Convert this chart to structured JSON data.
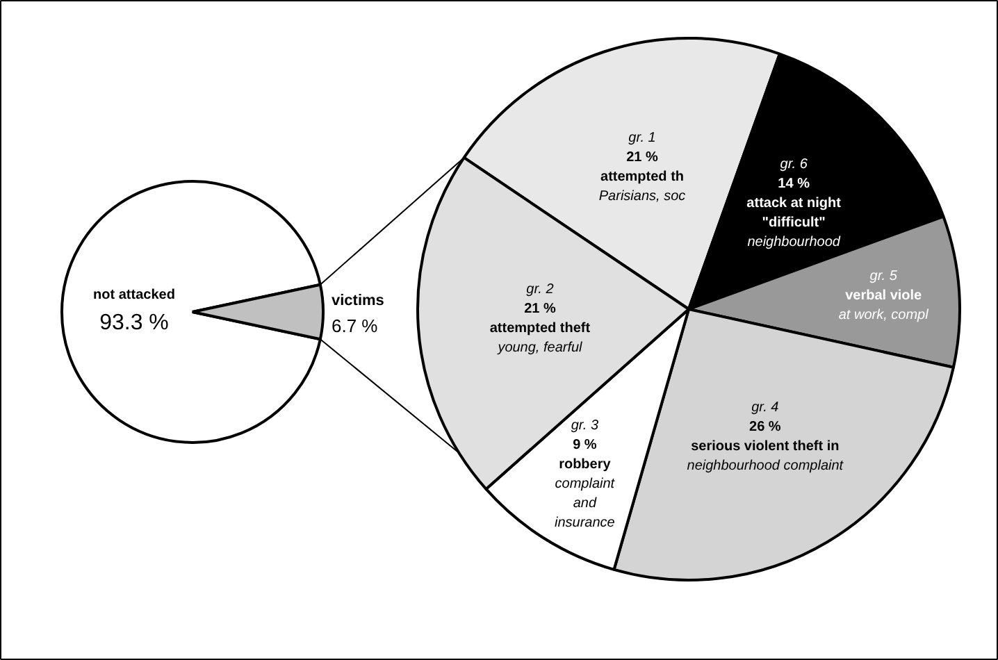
{
  "chart_data": [
    {
      "type": "pie",
      "categories": [
        "not attacked",
        "victims"
      ],
      "values": [
        93.3,
        6.7
      ],
      "value_labels": [
        "93.3 %",
        "6.7 %"
      ],
      "colors": [
        "#ffffff",
        "#c0c0c0"
      ]
    },
    {
      "type": "pie",
      "categories": [
        "gr. 1",
        "gr. 6",
        "gr. 5",
        "gr. 4",
        "gr. 3",
        "gr. 2"
      ],
      "values": [
        21,
        14,
        9,
        26,
        9,
        21
      ],
      "value_labels": [
        "21 %",
        "14 %",
        null,
        "26 %",
        "9 %",
        "21 %"
      ],
      "colors": [
        "#e8e8e8",
        "#000000",
        "#999999",
        "#d4d4d4",
        "#ffffff",
        "#e0e0e0"
      ],
      "annotations": [
        {
          "text": "attempted th\nParisians, soc",
          "x": "gr. 1"
        },
        {
          "text": "attack at night\n\"difficult\"\nneighbourhood",
          "x": "gr. 6"
        },
        {
          "text": "verbal viole\nat work, compl",
          "x": "gr. 5"
        },
        {
          "text": "serious violent theft in\nneighbourhood complaint",
          "x": "gr. 4"
        },
        {
          "text": "robbery\ncomplaint\nand\ninsurance",
          "x": "gr. 3"
        },
        {
          "text": "attempted theft\nyoung, fearful",
          "x": "gr. 2"
        }
      ]
    }
  ]
}
